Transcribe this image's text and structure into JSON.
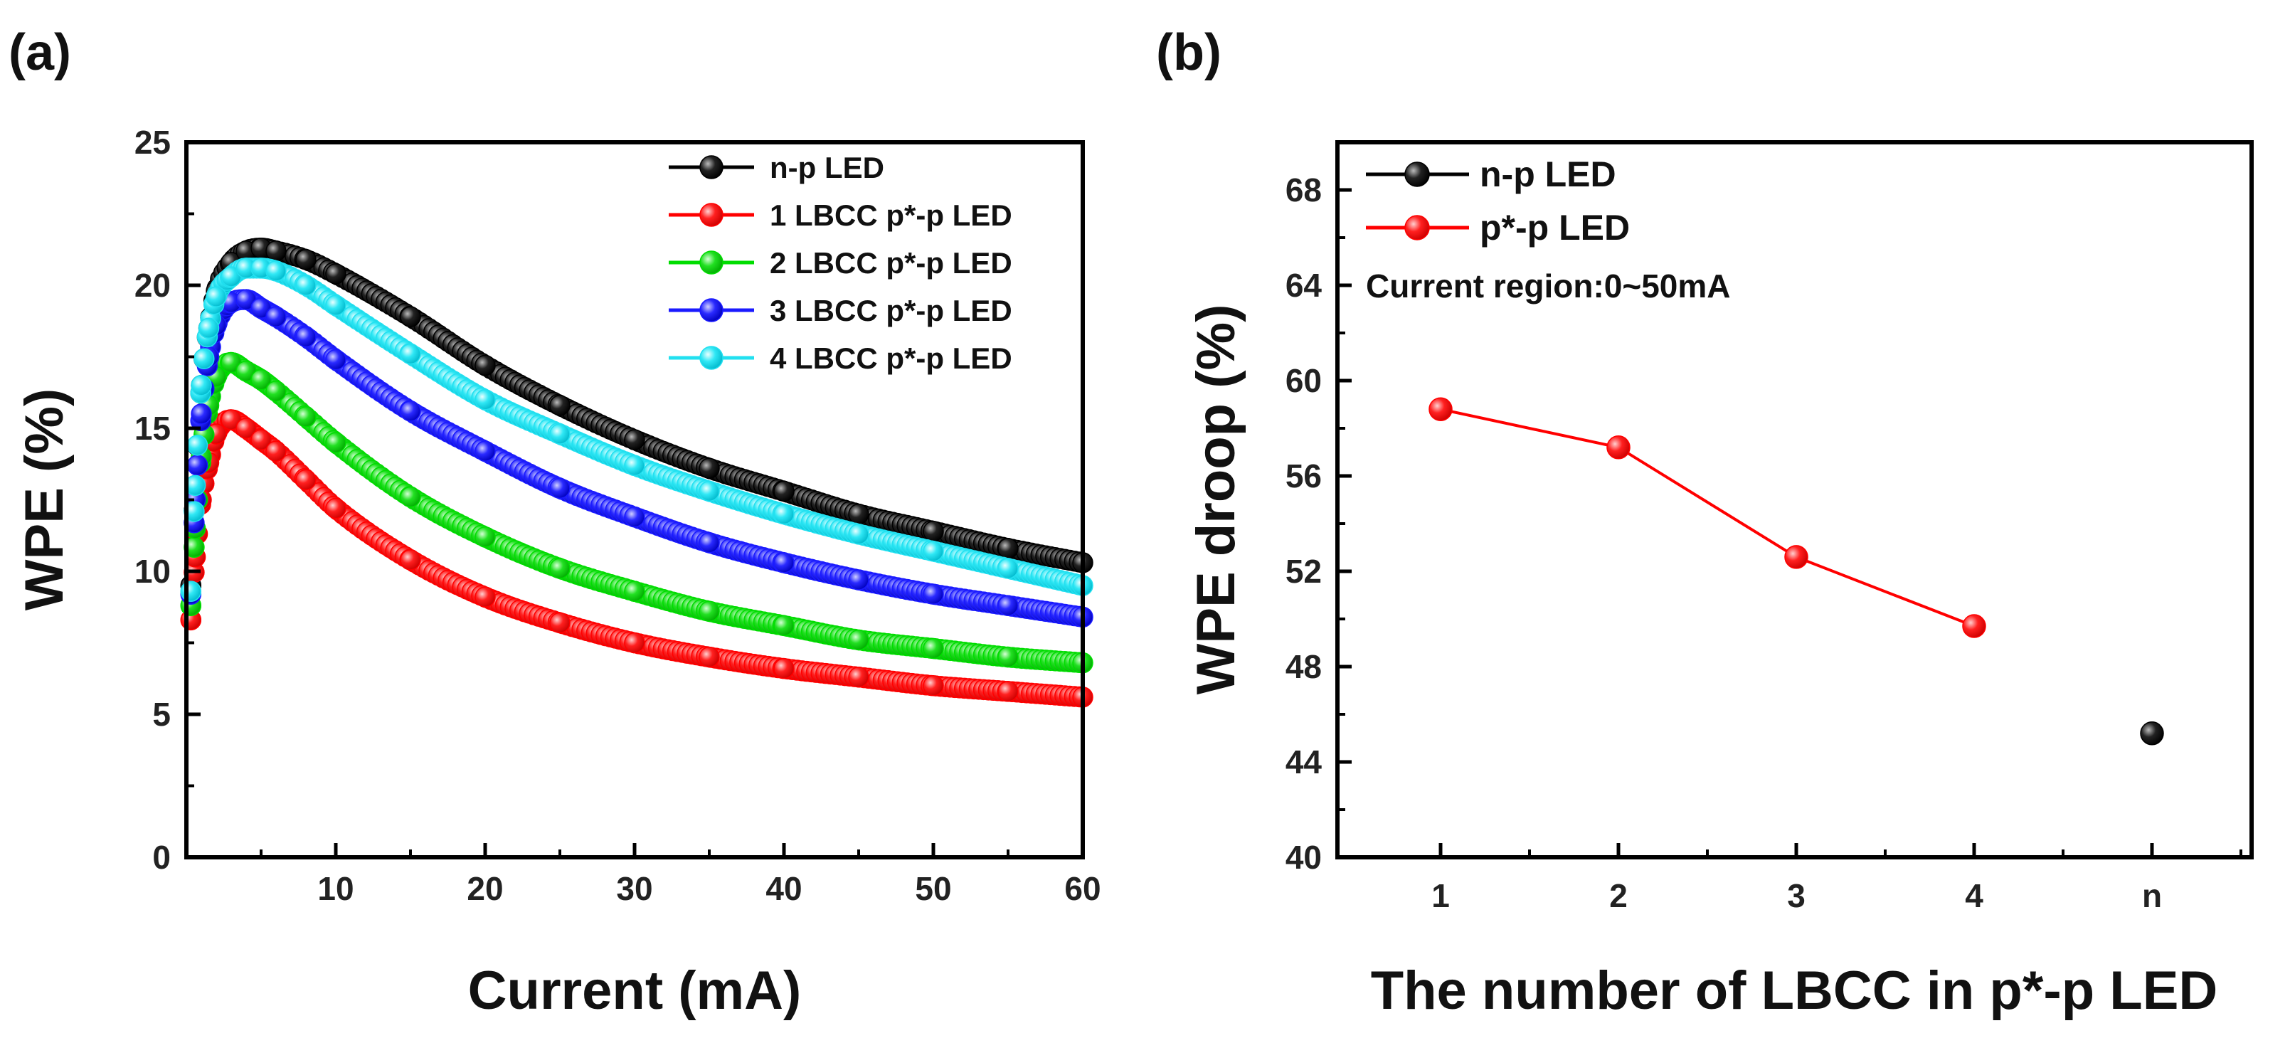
{
  "chart_data": [
    {
      "panel": "(a)",
      "type": "line",
      "title": "",
      "xlabel": "Current (mA)",
      "ylabel": "WPE (%)",
      "xlim": [
        0,
        60
      ],
      "ylim": [
        0,
        25
      ],
      "xticks": [
        "10",
        "20",
        "30",
        "40",
        "50",
        "60"
      ],
      "yticks": [
        "0",
        "5",
        "10",
        "15",
        "20",
        "25"
      ],
      "legend_position": "top-right",
      "series": [
        {
          "name": "n-p LED",
          "color": "#000000",
          "x": [
            0.3,
            0.6,
            1,
            1.5,
            2,
            3,
            4,
            5,
            6,
            8,
            10,
            15,
            20,
            25,
            30,
            35,
            40,
            45,
            50,
            55,
            60
          ],
          "y": [
            9.5,
            13,
            16.5,
            18.5,
            19.8,
            20.8,
            21.2,
            21.3,
            21.2,
            20.9,
            20.4,
            18.9,
            17.2,
            15.8,
            14.6,
            13.6,
            12.8,
            12.0,
            11.4,
            10.8,
            10.3
          ]
        },
        {
          "name": "1 LBCC p*-p LED",
          "color": "#ff0000",
          "x": [
            0.3,
            0.6,
            1,
            1.5,
            2,
            3,
            4,
            5,
            6,
            8,
            10,
            15,
            20,
            25,
            30,
            35,
            40,
            45,
            50,
            55,
            60
          ],
          "y": [
            8.3,
            10.5,
            12.5,
            13.8,
            14.8,
            15.3,
            15.0,
            14.6,
            14.2,
            13.2,
            12.2,
            10.4,
            9.1,
            8.2,
            7.5,
            7.0,
            6.6,
            6.3,
            6.0,
            5.8,
            5.6
          ]
        },
        {
          "name": "2 LBCC p*-p LED",
          "color": "#00dd00",
          "x": [
            0.3,
            0.6,
            1,
            1.5,
            2,
            3,
            4,
            5,
            6,
            8,
            10,
            15,
            20,
            25,
            30,
            35,
            40,
            45,
            50,
            55,
            60
          ],
          "y": [
            8.8,
            11.5,
            14,
            15.8,
            16.8,
            17.3,
            17.0,
            16.7,
            16.3,
            15.4,
            14.5,
            12.6,
            11.2,
            10.1,
            9.3,
            8.6,
            8.1,
            7.6,
            7.3,
            7.0,
            6.8
          ]
        },
        {
          "name": "3 LBCC p*-p LED",
          "color": "#1a1aff",
          "x": [
            0.3,
            0.6,
            1,
            1.5,
            2,
            3,
            4,
            5,
            6,
            8,
            10,
            15,
            20,
            25,
            30,
            35,
            40,
            45,
            50,
            55,
            60
          ],
          "y": [
            9.2,
            12.5,
            15.5,
            17.5,
            18.6,
            19.4,
            19.5,
            19.2,
            18.9,
            18.2,
            17.4,
            15.6,
            14.2,
            12.9,
            11.9,
            11.0,
            10.3,
            9.7,
            9.2,
            8.8,
            8.4
          ]
        },
        {
          "name": "4 LBCC p*-p LED",
          "color": "#22e0f0",
          "x": [
            0.3,
            0.6,
            1,
            1.5,
            2,
            3,
            4,
            5,
            6,
            8,
            10,
            15,
            20,
            25,
            30,
            35,
            40,
            45,
            50,
            55,
            60
          ],
          "y": [
            9.3,
            13,
            16.5,
            18.5,
            19.6,
            20.3,
            20.6,
            20.6,
            20.5,
            20.0,
            19.3,
            17.6,
            16.0,
            14.8,
            13.7,
            12.8,
            12.0,
            11.3,
            10.7,
            10.1,
            9.5
          ]
        }
      ]
    },
    {
      "panel": "(b)",
      "type": "line",
      "title": "",
      "xlabel": "The number of LBCC in p*-p LED",
      "ylabel": "WPE droop (%)",
      "categories": [
        "1",
        "2",
        "3",
        "4",
        "n"
      ],
      "ylim": [
        40,
        70
      ],
      "yticks": [
        "40",
        "44",
        "48",
        "52",
        "56",
        "60",
        "64",
        "68"
      ],
      "annotation": "Current region:0~50mA",
      "legend_position": "top-left",
      "series": [
        {
          "name": "n-p LED",
          "color": "#000000",
          "points": [
            {
              "category": "n",
              "value": 45.2
            }
          ]
        },
        {
          "name": "p*-p LED",
          "color": "#ff0000",
          "points": [
            {
              "category": "1",
              "value": 58.8
            },
            {
              "category": "2",
              "value": 57.2
            },
            {
              "category": "3",
              "value": 52.6
            },
            {
              "category": "4",
              "value": 49.7
            }
          ]
        }
      ]
    }
  ]
}
